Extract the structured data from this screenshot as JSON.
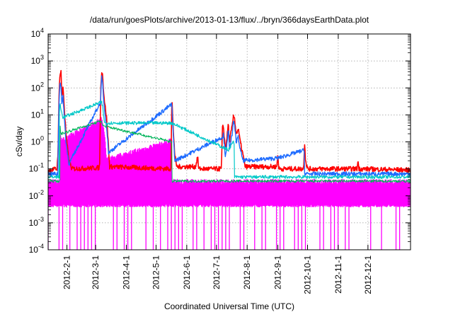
{
  "chart_data": {
    "type": "line",
    "title": "/data/run/goesPlots/archive/2013-01-13/flux/../bryn/366daysEarthData.plot",
    "xlabel": "Coordinated Universal Time (UTC)",
    "ylabel": "cSv/day",
    "yscale": "log",
    "ylim": [
      0.0001,
      10000
    ],
    "xlim": [
      "2012-01-13",
      "2013-01-13"
    ],
    "y_ticks": [
      {
        "value": 0.0001,
        "base": "10",
        "exp": "-4"
      },
      {
        "value": 0.001,
        "base": "10",
        "exp": "-3"
      },
      {
        "value": 0.01,
        "base": "10",
        "exp": "-2"
      },
      {
        "value": 0.1,
        "base": "10",
        "exp": "-1"
      },
      {
        "value": 1,
        "base": "10",
        "exp": "0"
      },
      {
        "value": 10,
        "base": "10",
        "exp": "1"
      },
      {
        "value": 100,
        "base": "10",
        "exp": "2"
      },
      {
        "value": 1000,
        "base": "10",
        "exp": "3"
      },
      {
        "value": 10000,
        "base": "10",
        "exp": "4"
      }
    ],
    "x_ticks": [
      {
        "date": "2012-02-01",
        "label": "2012-2-1"
      },
      {
        "date": "2012-03-01",
        "label": "2012-3-1"
      },
      {
        "date": "2012-04-01",
        "label": "2012-4-1"
      },
      {
        "date": "2012-05-01",
        "label": "2012-5-1"
      },
      {
        "date": "2012-06-01",
        "label": "2012-6-1"
      },
      {
        "date": "2012-07-01",
        "label": "2012-7-1"
      },
      {
        "date": "2012-08-01",
        "label": "2012-8-1"
      },
      {
        "date": "2012-09-01",
        "label": "2012-9-1"
      },
      {
        "date": "2012-10-01",
        "label": "2012-10-1"
      },
      {
        "date": "2012-11-01",
        "label": "2012-11-1"
      },
      {
        "date": "2012-12-01",
        "label": "2012-12-1"
      }
    ],
    "grid": true,
    "legend": "none",
    "baselines": {
      "top": 0.085,
      "blue": 0.065,
      "cyan": 0.05,
      "green": 0.035,
      "magenta": 0.015
    },
    "series": [
      {
        "color": "#ff0000",
        "points": [
          [
            "2012-01-13",
            0.09
          ],
          [
            "2012-01-22",
            0.1
          ],
          [
            "2012-01-23",
            0.5
          ],
          [
            "2012-01-24",
            50
          ],
          [
            "2012-01-25",
            380
          ],
          [
            "2012-01-26",
            420
          ],
          [
            "2012-01-27",
            40
          ],
          [
            "2012-01-28",
            120
          ],
          [
            "2012-01-29",
            30
          ],
          [
            "2012-01-31",
            2
          ],
          [
            "2012-02-03",
            0.2
          ],
          [
            "2012-02-06",
            0.1
          ],
          [
            "2012-03-05",
            0.11
          ],
          [
            "2012-03-06",
            60
          ],
          [
            "2012-03-07",
            460
          ],
          [
            "2012-03-08",
            300
          ],
          [
            "2012-03-09",
            80
          ],
          [
            "2012-03-10",
            30
          ],
          [
            "2012-03-12",
            8
          ],
          [
            "2012-03-14",
            0.7
          ],
          [
            "2012-03-15",
            0.12
          ],
          [
            "2012-05-16",
            0.1
          ],
          [
            "2012-05-17",
            45
          ],
          [
            "2012-05-18",
            5
          ],
          [
            "2012-05-20",
            0.3
          ],
          [
            "2012-05-22",
            0.12
          ],
          [
            "2012-06-10",
            0.12
          ],
          [
            "2012-06-12",
            0.3
          ],
          [
            "2012-06-13",
            0.1
          ],
          [
            "2012-07-06",
            0.1
          ],
          [
            "2012-07-07",
            3
          ],
          [
            "2012-07-08",
            4
          ],
          [
            "2012-07-10",
            0.5
          ],
          [
            "2012-07-12",
            2
          ],
          [
            "2012-07-13",
            5
          ],
          [
            "2012-07-14",
            1
          ],
          [
            "2012-07-17",
            4
          ],
          [
            "2012-07-18",
            8
          ],
          [
            "2012-07-19",
            9
          ],
          [
            "2012-07-21",
            2
          ],
          [
            "2012-07-23",
            3
          ],
          [
            "2012-07-25",
            1
          ],
          [
            "2012-07-28",
            0.3
          ],
          [
            "2012-07-30",
            0.12
          ],
          [
            "2012-08-31",
            0.12
          ],
          [
            "2012-09-01",
            0.4
          ],
          [
            "2012-09-02",
            0.1
          ],
          [
            "2012-09-27",
            0.1
          ],
          [
            "2012-09-28",
            1
          ],
          [
            "2012-09-29",
            0.2
          ],
          [
            "2012-10-01",
            0.1
          ],
          [
            "2012-11-20",
            0.1
          ],
          [
            "2012-11-21",
            0.2
          ],
          [
            "2012-11-22",
            0.1
          ],
          [
            "2013-01-13",
            0.09
          ]
        ]
      },
      {
        "color": "#1e6cff",
        "points": [
          [
            "2012-01-23",
            0.3
          ],
          [
            "2012-01-24",
            30
          ],
          [
            "2012-01-25",
            200
          ],
          [
            "2012-01-26",
            100
          ],
          [
            "2012-01-27",
            20
          ],
          [
            "2012-01-28",
            60
          ],
          [
            "2012-01-29",
            12
          ],
          [
            "2012-01-31",
            1
          ],
          [
            "2012-02-03",
            0.15
          ],
          [
            "2012-03-06",
            30
          ],
          [
            "2012-03-07",
            250
          ],
          [
            "2012-03-08",
            150
          ],
          [
            "2012-03-09",
            40
          ],
          [
            "2012-03-10",
            15
          ],
          [
            "2012-03-12",
            4
          ],
          [
            "2012-03-14",
            0.4
          ],
          [
            "2012-05-17",
            25
          ],
          [
            "2012-05-18",
            3
          ],
          [
            "2012-05-20",
            0.2
          ],
          [
            "2012-07-07",
            1.5
          ],
          [
            "2012-07-08",
            2
          ],
          [
            "2012-07-10",
            0.3
          ],
          [
            "2012-07-12",
            1
          ],
          [
            "2012-07-13",
            3
          ],
          [
            "2012-07-14",
            0.6
          ],
          [
            "2012-07-17",
            2
          ],
          [
            "2012-07-18",
            5
          ],
          [
            "2012-07-19",
            5
          ],
          [
            "2012-07-21",
            1
          ],
          [
            "2012-07-23",
            1.5
          ],
          [
            "2012-07-25",
            0.5
          ],
          [
            "2012-07-28",
            0.2
          ],
          [
            "2012-09-01",
            0.25
          ],
          [
            "2012-09-28",
            0.5
          ]
        ]
      },
      {
        "color": "#00c8c8",
        "points": [
          [
            "2012-01-24",
            5
          ],
          [
            "2012-01-25",
            30
          ],
          [
            "2012-01-26",
            15
          ],
          [
            "2012-01-28",
            8
          ],
          [
            "2012-03-07",
            30
          ],
          [
            "2012-03-08",
            20
          ],
          [
            "2012-03-10",
            5
          ],
          [
            "2012-05-17",
            5
          ],
          [
            "2012-07-13",
            0.5
          ],
          [
            "2012-07-18",
            1
          ],
          [
            "2012-07-19",
            0.8
          ]
        ]
      },
      {
        "color": "#00b45a",
        "points": [
          [
            "2012-01-25",
            4
          ],
          [
            "2012-01-26",
            2
          ],
          [
            "2012-03-07",
            6
          ],
          [
            "2012-03-08",
            4
          ],
          [
            "2012-05-17",
            1
          ]
        ]
      },
      {
        "color": "#ff00ff",
        "points": [
          [
            "2012-01-25",
            1
          ],
          [
            "2012-01-26",
            0.5
          ],
          [
            "2012-03-07",
            3
          ],
          [
            "2012-03-08",
            2
          ],
          [
            "2012-03-10",
            0.8
          ],
          [
            "2012-03-12",
            0.1
          ],
          [
            "2012-05-17",
            0.5
          ]
        ]
      }
    ]
  }
}
